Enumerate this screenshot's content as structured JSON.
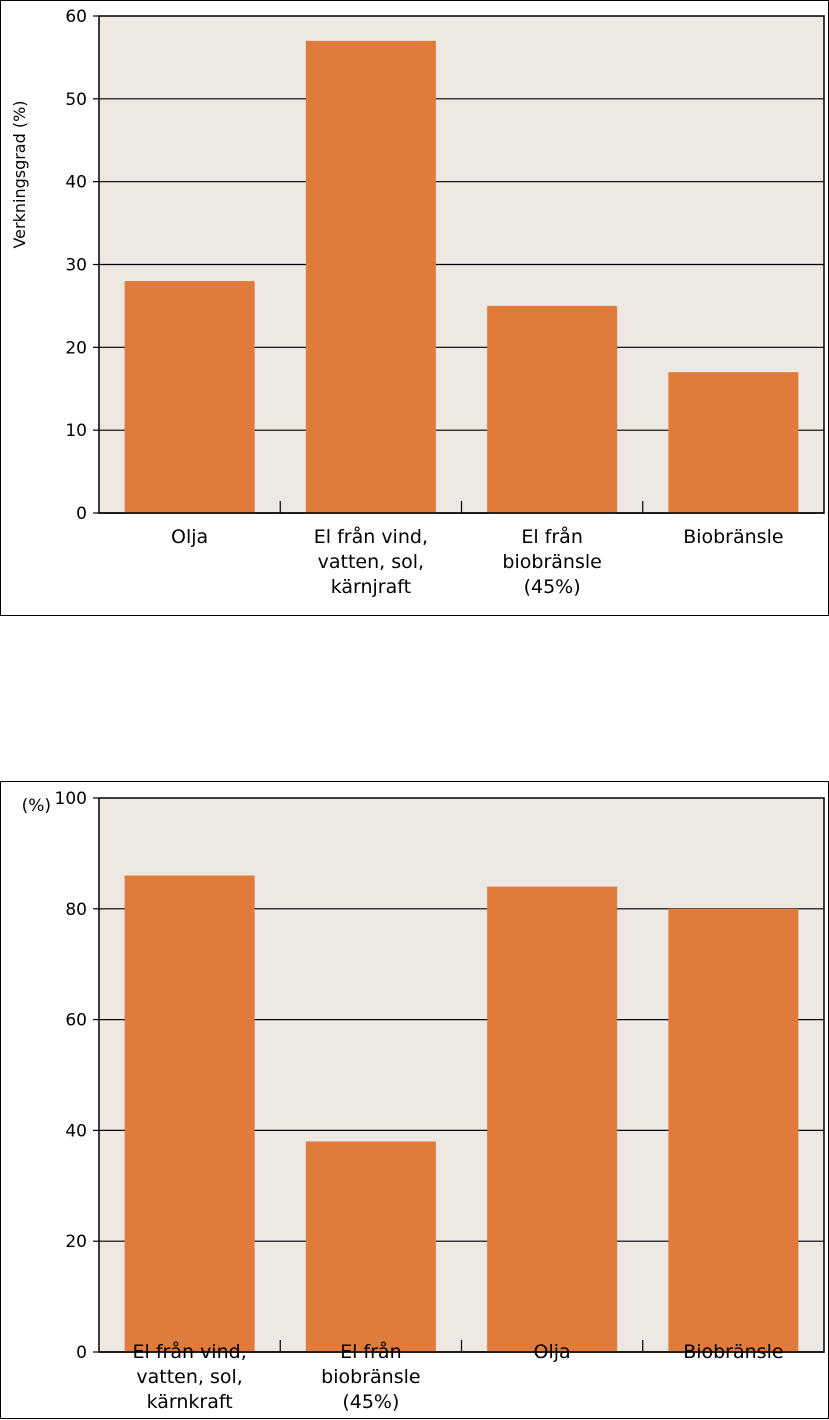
{
  "chart_data": [
    {
      "type": "bar",
      "categories": [
        [
          "Olja"
        ],
        [
          "El från vind,",
          "vatten, sol,",
          "kärnjraft"
        ],
        [
          "El från",
          "biobränsle",
          "(45%)"
        ],
        [
          "Biobränsle"
        ]
      ],
      "values": [
        28,
        57,
        25,
        17
      ],
      "ylabel": "Verkningsgrad (%)",
      "yunit_label": "",
      "ylim": [
        0,
        60
      ],
      "yticks": [
        0,
        10,
        20,
        30,
        40,
        50,
        60
      ],
      "grid": true,
      "colors": {
        "bar": "#e07b3c",
        "plot_bg": "#ede8e2",
        "grid": "#000000"
      }
    },
    {
      "type": "bar",
      "categories": [
        [
          "El från vind,",
          "vatten, sol,",
          "kärnkraft"
        ],
        [
          "El från",
          "biobränsle",
          "(45%)"
        ],
        [
          "Olja"
        ],
        [
          "Biobränsle"
        ]
      ],
      "values": [
        86,
        38,
        84,
        80
      ],
      "ylabel": "",
      "yunit_label": "(%)",
      "ylim": [
        0,
        100
      ],
      "yticks": [
        0,
        20,
        40,
        60,
        80,
        100
      ],
      "grid": true,
      "colors": {
        "bar": "#e07b3c",
        "plot_bg": "#ede8e2",
        "grid": "#000000"
      }
    }
  ]
}
